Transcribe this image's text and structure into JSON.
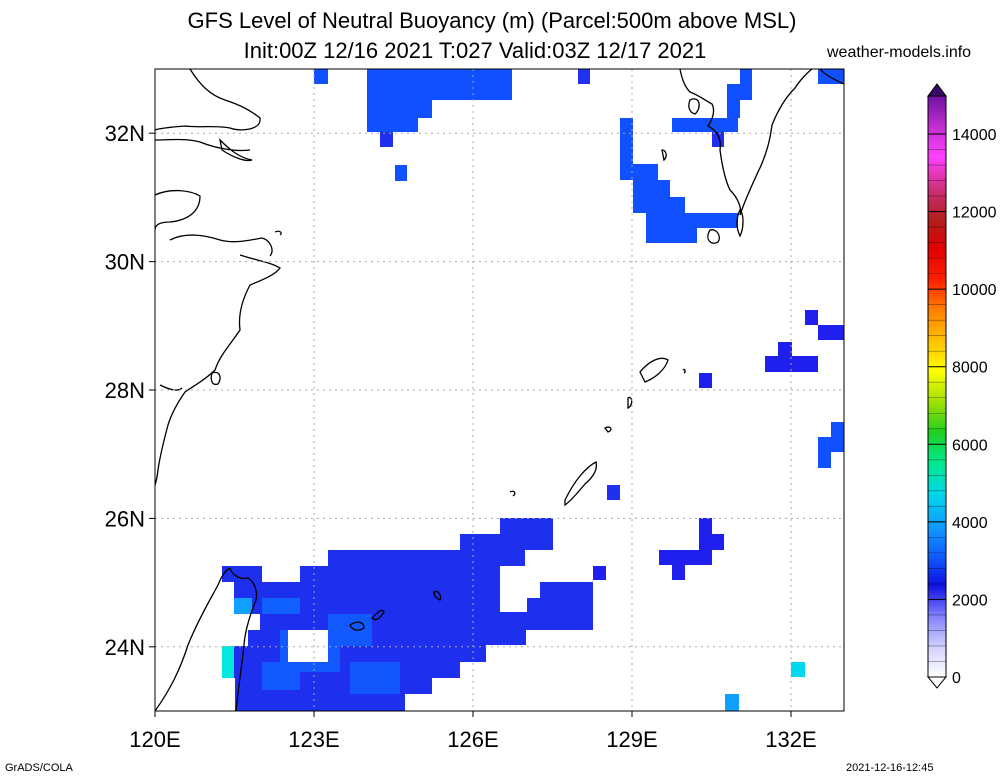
{
  "header": {
    "title_line1": "GFS Level of Neutral Buoyancy (m) (Parcel:500m above MSL)",
    "title_line2": "Init:00Z 12/16 2021 T:027 Valid:03Z 12/17 2021",
    "site": "weather-models.info"
  },
  "footer": {
    "left": "GrADS/COLA",
    "right": "2021-12-16-12:45"
  },
  "map": {
    "lon_range": [
      120,
      133
    ],
    "lat_range": [
      23,
      33
    ],
    "x_ticks": [
      {
        "value": 120,
        "label": "120E"
      },
      {
        "value": 123,
        "label": "123E"
      },
      {
        "value": 126,
        "label": "126E"
      },
      {
        "value": 129,
        "label": "129E"
      },
      {
        "value": 132,
        "label": "132E"
      }
    ],
    "y_ticks": [
      {
        "value": 24,
        "label": "24N"
      },
      {
        "value": 26,
        "label": "26N"
      },
      {
        "value": 28,
        "label": "28N"
      },
      {
        "value": 30,
        "label": "30N"
      },
      {
        "value": 32,
        "label": "32N"
      }
    ],
    "grid": true,
    "fill_colors": {
      "low": "#2222ee",
      "mid": "#1060ff",
      "high": "#00e0f0"
    }
  },
  "colorbar": {
    "labels": [
      "0",
      "2000",
      "4000",
      "6000",
      "8000",
      "10000",
      "12000",
      "14000"
    ],
    "stops": [
      "#ffffff",
      "#d0d0ff",
      "#8080ff",
      "#1010e0",
      "#1060ff",
      "#10a0ff",
      "#00d8e8",
      "#00e890",
      "#20d020",
      "#a0e000",
      "#ffff00",
      "#ffc000",
      "#ff8000",
      "#ff2000",
      "#e00000",
      "#b02020",
      "#d03080",
      "#ff40ff",
      "#c030d0",
      "#7010a0"
    ]
  }
}
